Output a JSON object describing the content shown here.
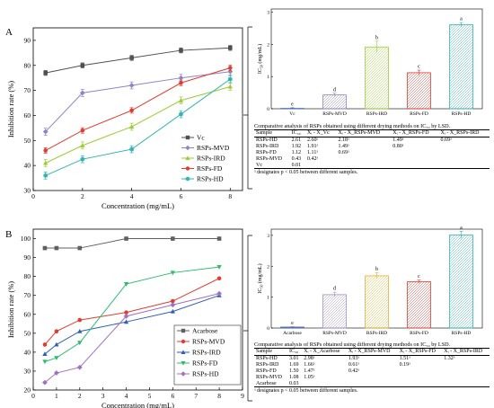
{
  "panels": [
    {
      "letter": "A",
      "line": {
        "ylabel": "Inhibition rate (%)",
        "xlabel": "Concentration (mg/mL)",
        "xticks": [
          0,
          2,
          4,
          6,
          8
        ],
        "yticks": [
          30,
          40,
          50,
          60,
          70,
          80,
          90
        ],
        "series": [
          {
            "name": "Vc",
            "color": "#505050",
            "marker": "square",
            "x": [
              0.5,
              2,
              4,
              6,
              8
            ],
            "y": [
              77,
              80,
              83,
              86,
              87
            ]
          },
          {
            "name": "RSPs-MVD",
            "color": "#8f83c6",
            "marker": "diamond",
            "x": [
              0.5,
              2,
              4,
              6,
              8
            ],
            "y": [
              53.5,
              69,
              72,
              75,
              77.5
            ]
          },
          {
            "name": "RSPs-IRD",
            "color": "#9acd32",
            "marker": "triangle",
            "x": [
              0.5,
              2,
              4,
              6,
              8
            ],
            "y": [
              41,
              48,
              55.5,
              66,
              71.5
            ]
          },
          {
            "name": "RSPs-FD",
            "color": "#e03c31",
            "marker": "circle",
            "x": [
              0.5,
              2,
              4,
              6,
              8
            ],
            "y": [
              46,
              54,
              62,
              73,
              79
            ]
          },
          {
            "name": "RSPs-HD",
            "color": "#33b3b3",
            "marker": "hexagon",
            "x": [
              0.5,
              2,
              4,
              6,
              8
            ],
            "y": [
              36,
              42.5,
              46.5,
              60.5,
              74.5
            ]
          }
        ]
      },
      "bar": {
        "ylabel_main": "IC",
        "ylabel_sub": "50",
        "ylabel_unit": " (mg/mL)",
        "yticks": [
          0,
          1,
          2,
          3
        ],
        "categories": [
          "Vc",
          "RSPs-MVD",
          "RSPs-IRD",
          "RSPs-FD",
          "RSPs-HD"
        ],
        "values": [
          0.01,
          0.43,
          1.92,
          1.12,
          2.61
        ],
        "letters": [
          "e",
          "d",
          "b",
          "c",
          "a"
        ],
        "colors": [
          "#3a5fb0",
          "#8f83c6",
          "#9acd32",
          "#e03c31",
          "#33b3b3"
        ]
      },
      "table": {
        "caption": "Comparative analysis of RSPs obtained using different drying methods on IC₅₀ by LSD.",
        "headers": [
          "Sample",
          "IC₅₀",
          "Xᵢ - X_Vc",
          "Xᵢ - X_RSPs-MVD",
          "Xᵢ - X_RSPs-FD",
          "Xᵢ - X_RSPs-IRD"
        ],
        "rows": [
          [
            "RSPs-HD",
            "2.61",
            "2.60ᵃ",
            "2.18ᵃ",
            "1.49ᵃ",
            "0.69ᵃ"
          ],
          [
            "RSPs-IRD",
            "1.92",
            "1.91ᵃ",
            "1.49ᵃ",
            "0.80ᵃ",
            ""
          ],
          [
            "RSPs-FD",
            "1.12",
            "1.11ᵃ",
            "0.69ᵃ",
            "",
            ""
          ],
          [
            "RSPs-MVD",
            "0.43",
            "0.42ᵃ",
            "",
            "",
            ""
          ],
          [
            "Vc",
            "0.01",
            "",
            "",
            "",
            ""
          ]
        ],
        "note": "ᵃ designates p < 0.05 between different samples."
      }
    },
    {
      "letter": "B",
      "line": {
        "ylabel": "Inhibition rate (%)",
        "xlabel": "Concentration (mg/mL)",
        "xticks": [
          0,
          1,
          2,
          3,
          4,
          5,
          6,
          7,
          8,
          9
        ],
        "yticks": [
          20,
          30,
          40,
          50,
          60,
          70,
          80,
          90,
          100
        ],
        "series": [
          {
            "name": "Acarbose",
            "color": "#606060",
            "marker": "square",
            "x": [
              0.5,
              1,
              2,
              4,
              6,
              8
            ],
            "y": [
              95,
              95,
              95,
              100,
              100,
              100
            ]
          },
          {
            "name": "RSPs-MVD",
            "color": "#e03c31",
            "marker": "circle",
            "x": [
              0.5,
              1,
              2,
              4,
              6,
              8
            ],
            "y": [
              44,
              51,
              57,
              61,
              67,
              79
            ]
          },
          {
            "name": "RSPs-IRD",
            "color": "#2e5fb5",
            "marker": "triangle",
            "x": [
              0.5,
              1,
              2,
              4,
              6,
              8
            ],
            "y": [
              39,
              44,
              51,
              56,
              61.5,
              70
            ]
          },
          {
            "name": "RSPs-FD",
            "color": "#2ebd6e",
            "marker": "triangle-down",
            "x": [
              0.5,
              1,
              2,
              4,
              6,
              8
            ],
            "y": [
              35,
              37,
              45,
              76,
              82,
              85
            ]
          },
          {
            "name": "RSPs-HD",
            "color": "#a070c0",
            "marker": "diamond",
            "x": [
              0.5,
              1,
              2,
              4,
              6,
              8
            ],
            "y": [
              24,
              29,
              32,
              59,
              65,
              71
            ]
          }
        ]
      },
      "bar": {
        "ylabel_main": "IC",
        "ylabel_sub": "50",
        "ylabel_unit": " (mg/mL)",
        "yticks": [
          0,
          1,
          2,
          3
        ],
        "categories": [
          "Acarbose",
          "RSPs-MVD",
          "RSPs-IRD",
          "RSPs-FD",
          "RSPs-HD"
        ],
        "values": [
          0.03,
          1.08,
          1.69,
          1.5,
          3.01
        ],
        "letters": [
          "e",
          "d",
          "b",
          "c",
          "a"
        ],
        "colors": [
          "#3a5fb0",
          "#a090cc",
          "#e0b030",
          "#e03c31",
          "#33b3b3"
        ]
      },
      "table": {
        "caption": "Comparative analysis of RSPs obtained using different drying methods on IC₅₀ by LSD.",
        "headers": [
          "Sample",
          "IC₅₀",
          "Xᵢ - X_Acarbose",
          "Xᵢ - X_RSPs-MVD",
          "Xᵢ - X_RSPs-FD",
          "Xᵢ - X_RSPs-IRD"
        ],
        "rows": [
          [
            "RSPs-HD",
            "3.01",
            "2.98ᵃ",
            "1.93ᵃ",
            "1.51ᵃ",
            "1.32ᵃ"
          ],
          [
            "RSPs-IRD",
            "1.69",
            "1.66ᵃ",
            "0.61ᵃ",
            "0.19ᵃ",
            ""
          ],
          [
            "RSPs-FD",
            "1.50",
            "1.47ᵃ",
            "0.42ᵃ",
            "",
            ""
          ],
          [
            "RSPs-MVD",
            "1.08",
            "1.05ᵃ",
            "",
            "",
            ""
          ],
          [
            "Acarbose",
            "0.03",
            "",
            "",
            "",
            ""
          ]
        ],
        "note": "ᵃ designates p < 0.05 between different samples."
      }
    }
  ],
  "chart_data": [
    {
      "type": "line",
      "title": "",
      "xlabel": "Concentration (mg/mL)",
      "ylabel": "Inhibition rate (%)",
      "xlim": [
        0,
        8.5
      ],
      "ylim": [
        30,
        95
      ],
      "x": [
        0.5,
        2,
        4,
        6,
        8
      ],
      "series": [
        {
          "name": "Vc",
          "values": [
            77,
            80,
            83,
            86,
            87
          ]
        },
        {
          "name": "RSPs-MVD",
          "values": [
            53.5,
            69,
            72,
            75,
            77.5
          ]
        },
        {
          "name": "RSPs-IRD",
          "values": [
            41,
            48,
            55.5,
            66,
            71.5
          ]
        },
        {
          "name": "RSPs-FD",
          "values": [
            46,
            54,
            62,
            73,
            79
          ]
        },
        {
          "name": "RSPs-HD",
          "values": [
            36,
            42.5,
            46.5,
            60.5,
            74.5
          ]
        }
      ],
      "legend": "right"
    },
    {
      "type": "bar",
      "ylabel": "IC50 (mg/mL)",
      "ylim": [
        0,
        3
      ],
      "categories": [
        "Vc",
        "RSPs-MVD",
        "RSPs-IRD",
        "RSPs-FD",
        "RSPs-HD"
      ],
      "values": [
        0.01,
        0.43,
        1.92,
        1.12,
        2.61
      ],
      "annotations": [
        "e",
        "d",
        "b",
        "c",
        "a"
      ]
    },
    {
      "type": "line",
      "title": "",
      "xlabel": "Concentration (mg/mL)",
      "ylabel": "Inhibition rate (%)",
      "xlim": [
        0,
        9
      ],
      "ylim": [
        20,
        105
      ],
      "x": [
        0.5,
        1,
        2,
        4,
        6,
        8
      ],
      "series": [
        {
          "name": "Acarbose",
          "values": [
            95,
            95,
            95,
            100,
            100,
            100
          ]
        },
        {
          "name": "RSPs-MVD",
          "values": [
            44,
            51,
            57,
            61,
            67,
            79
          ]
        },
        {
          "name": "RSPs-IRD",
          "values": [
            39,
            44,
            51,
            56,
            61.5,
            70
          ]
        },
        {
          "name": "RSPs-FD",
          "values": [
            35,
            37,
            45,
            76,
            82,
            85
          ]
        },
        {
          "name": "RSPs-HD",
          "values": [
            24,
            29,
            32,
            59,
            65,
            71
          ]
        }
      ],
      "legend": "bottom-right"
    },
    {
      "type": "bar",
      "ylabel": "IC50 (mg/mL)",
      "ylim": [
        0,
        3.2
      ],
      "categories": [
        "Acarbose",
        "RSPs-MVD",
        "RSPs-IRD",
        "RSPs-FD",
        "RSPs-HD"
      ],
      "values": [
        0.03,
        1.08,
        1.69,
        1.5,
        3.01
      ],
      "annotations": [
        "e",
        "d",
        "b",
        "c",
        "a"
      ]
    }
  ]
}
